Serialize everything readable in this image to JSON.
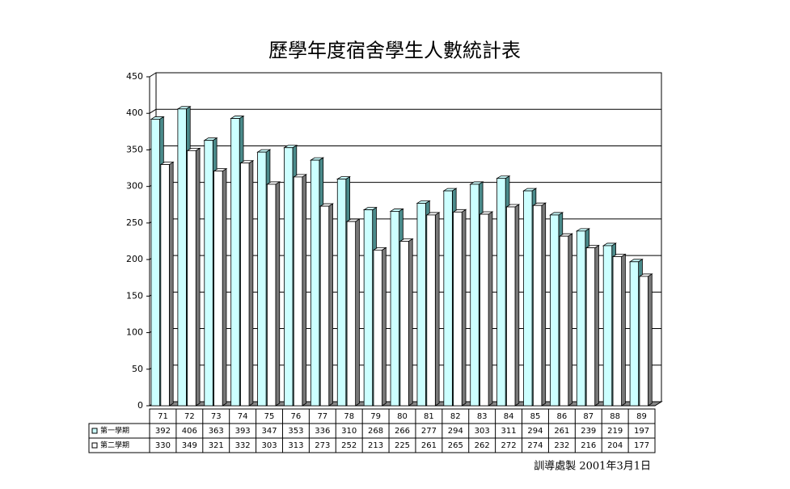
{
  "chart_data": {
    "type": "bar",
    "title": "歷學年度宿舍學生人數統計表",
    "categories": [
      "71",
      "72",
      "73",
      "74",
      "75",
      "76",
      "77",
      "78",
      "79",
      "80",
      "81",
      "82",
      "83",
      "84",
      "85",
      "86",
      "87",
      "88",
      "89"
    ],
    "series": [
      {
        "name": "第一學期",
        "color": "#ccffff",
        "values": [
          392,
          406,
          363,
          393,
          347,
          353,
          336,
          310,
          268,
          266,
          277,
          294,
          303,
          311,
          294,
          261,
          239,
          219,
          197
        ]
      },
      {
        "name": "第二學期",
        "color": "#ffffff",
        "values": [
          330,
          349,
          321,
          332,
          303,
          313,
          273,
          252,
          213,
          225,
          261,
          265,
          262,
          272,
          274,
          232,
          216,
          204,
          177
        ]
      }
    ],
    "ylim": [
      0,
      450
    ],
    "yticks": [
      0,
      50,
      100,
      150,
      200,
      250,
      300,
      350,
      400,
      450
    ],
    "grid": true,
    "footer": "訓導處製  2001年3月1日"
  }
}
